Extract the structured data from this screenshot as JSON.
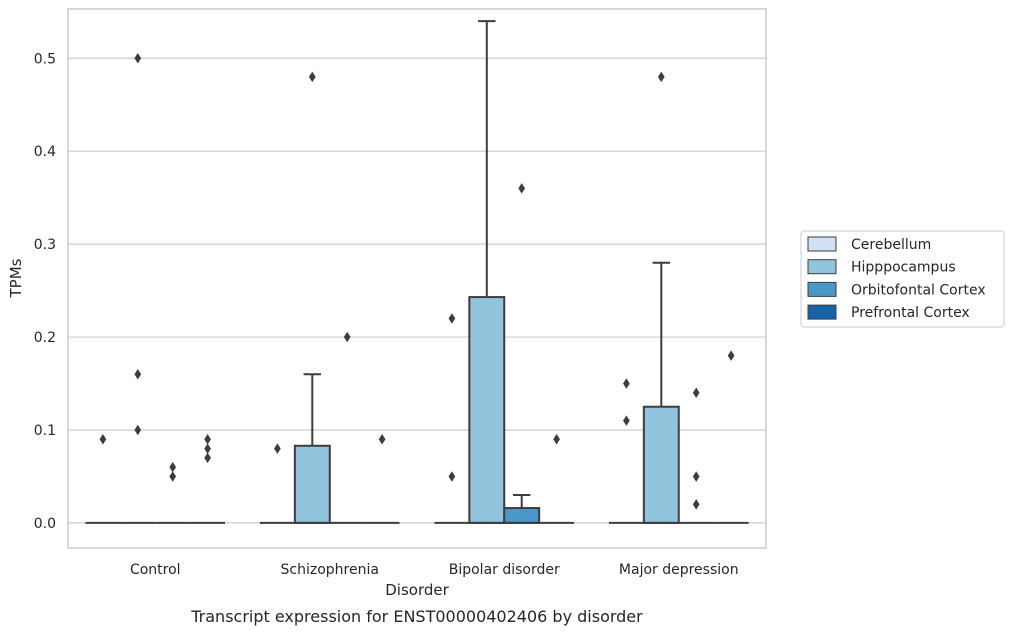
{
  "chart_data": {
    "type": "box",
    "caption": "Transcript expression for ENST00000402406 by disorder",
    "xlabel": "Disorder",
    "ylabel": "TPMs",
    "ylim": [
      -0.027,
      0.553
    ],
    "yticks": [
      0.0,
      0.1,
      0.2,
      0.3,
      0.4,
      0.5
    ],
    "ytick_labels": [
      "0.0",
      "0.1",
      "0.2",
      "0.3",
      "0.4",
      "0.5"
    ],
    "grid": true,
    "legend_placement": "right",
    "categories": [
      "Control",
      "Schizophrenia",
      "Bipolar disorder",
      "Major depression"
    ],
    "series": [
      {
        "name": "Cerebellum",
        "color": "#cfe1f2",
        "boxes": [
          {
            "category": "Control",
            "q1": 0,
            "median": 0,
            "q3": 0,
            "whisker_low": 0,
            "whisker_high": 0,
            "outliers": [
              0.09
            ]
          },
          {
            "category": "Schizophrenia",
            "q1": 0,
            "median": 0,
            "q3": 0,
            "whisker_low": 0,
            "whisker_high": 0,
            "outliers": [
              0.08
            ]
          },
          {
            "category": "Bipolar disorder",
            "q1": 0,
            "median": 0,
            "q3": 0,
            "whisker_low": 0,
            "whisker_high": 0,
            "outliers": [
              0.22,
              0.05
            ]
          },
          {
            "category": "Major depression",
            "q1": 0,
            "median": 0,
            "q3": 0,
            "whisker_low": 0,
            "whisker_high": 0,
            "outliers": [
              0.15,
              0.11
            ]
          }
        ]
      },
      {
        "name": "Hipppocampus",
        "color": "#93c4de",
        "boxes": [
          {
            "category": "Control",
            "q1": 0,
            "median": 0,
            "q3": 0,
            "whisker_low": 0,
            "whisker_high": 0,
            "outliers": [
              0.5,
              0.16,
              0.1
            ]
          },
          {
            "category": "Schizophrenia",
            "q1": 0,
            "median": 0,
            "q3": 0.083,
            "whisker_low": 0,
            "whisker_high": 0.16,
            "outliers": [
              0.48
            ]
          },
          {
            "category": "Bipolar disorder",
            "q1": 0,
            "median": 0,
            "q3": 0.243,
            "whisker_low": 0,
            "whisker_high": 0.54,
            "outliers": []
          },
          {
            "category": "Major depression",
            "q1": 0,
            "median": 0,
            "q3": 0.125,
            "whisker_low": 0,
            "whisker_high": 0.28,
            "outliers": [
              0.48
            ]
          }
        ]
      },
      {
        "name": "Orbitofontal Cortex",
        "color": "#4a98c9",
        "boxes": [
          {
            "category": "Control",
            "q1": 0,
            "median": 0,
            "q3": 0,
            "whisker_low": 0,
            "whisker_high": 0,
            "outliers": [
              0.06,
              0.05
            ]
          },
          {
            "category": "Schizophrenia",
            "q1": 0,
            "median": 0,
            "q3": 0,
            "whisker_low": 0,
            "whisker_high": 0,
            "outliers": [
              0.2
            ]
          },
          {
            "category": "Bipolar disorder",
            "q1": 0,
            "median": 0,
            "q3": 0.016,
            "whisker_low": 0,
            "whisker_high": 0.03,
            "outliers": [
              0.36
            ]
          },
          {
            "category": "Major depression",
            "q1": 0,
            "median": 0,
            "q3": 0,
            "whisker_low": 0,
            "whisker_high": 0,
            "outliers": [
              0.14,
              0.05,
              0.02
            ]
          }
        ]
      },
      {
        "name": "Prefrontal Cortex",
        "color": "#1764ab",
        "boxes": [
          {
            "category": "Control",
            "q1": 0,
            "median": 0,
            "q3": 0,
            "whisker_low": 0,
            "whisker_high": 0,
            "outliers": [
              0.09,
              0.08,
              0.07
            ]
          },
          {
            "category": "Schizophrenia",
            "q1": 0,
            "median": 0,
            "q3": 0,
            "whisker_low": 0,
            "whisker_high": 0,
            "outliers": [
              0.09
            ]
          },
          {
            "category": "Bipolar disorder",
            "q1": 0,
            "median": 0,
            "q3": 0,
            "whisker_low": 0,
            "whisker_high": 0,
            "outliers": [
              0.09
            ]
          },
          {
            "category": "Major depression",
            "q1": 0,
            "median": 0,
            "q3": 0,
            "whisker_low": 0,
            "whisker_high": 0,
            "outliers": [
              0.18
            ]
          }
        ]
      }
    ]
  },
  "style": {
    "grid_color": "#cccccc",
    "frame_color": "#cccccc",
    "line_color": "#3d3d3d",
    "text_color": "#262626"
  }
}
